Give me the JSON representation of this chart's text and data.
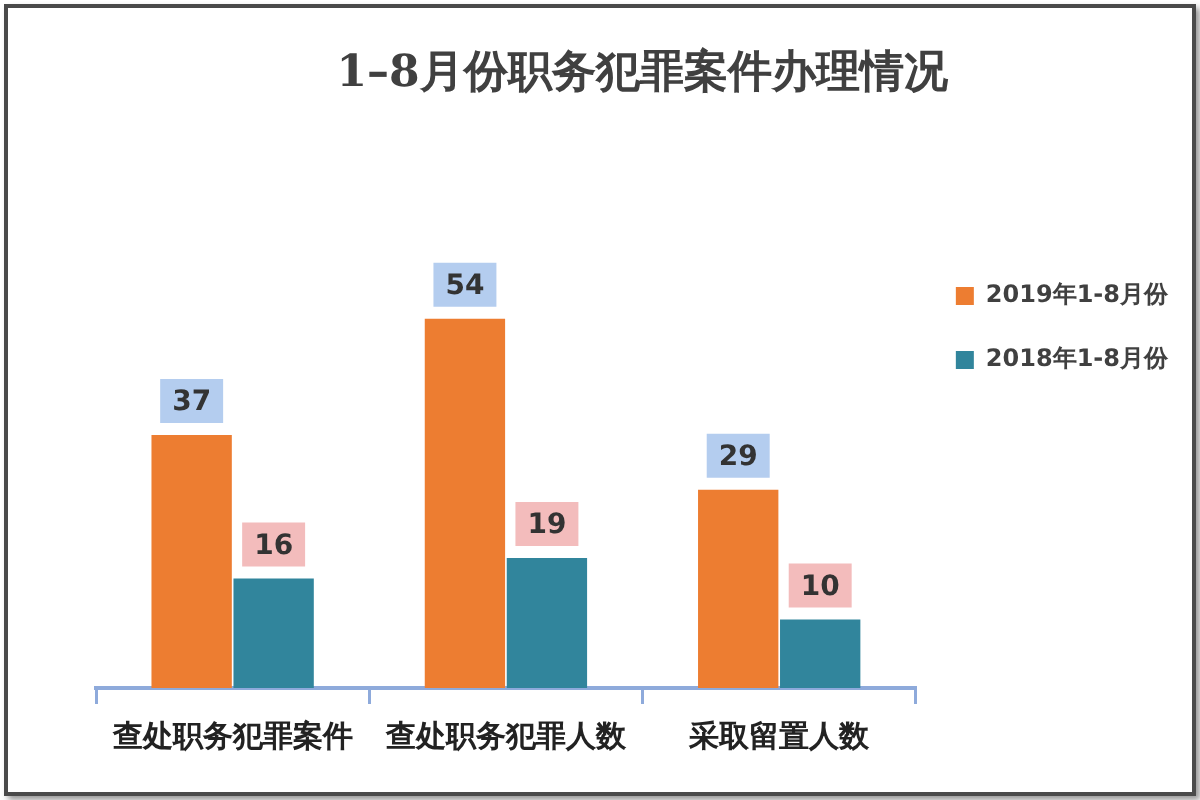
{
  "chart_data": {
    "type": "bar",
    "title": "1–8月份职务犯罪案件办理情况",
    "categories": [
      "查处职务犯罪案件",
      "查处职务犯罪人数",
      "采取留置人数"
    ],
    "series": [
      {
        "name": "2019年1-8月份",
        "color": "#ed7d31",
        "values": [
          37,
          54,
          29
        ]
      },
      {
        "name": "2018年1-8月份",
        "color": "#31859c",
        "values": [
          16,
          19,
          10
        ]
      }
    ],
    "data_labels": true,
    "legend": "right",
    "tick_labels": "x",
    "grid": false
  }
}
